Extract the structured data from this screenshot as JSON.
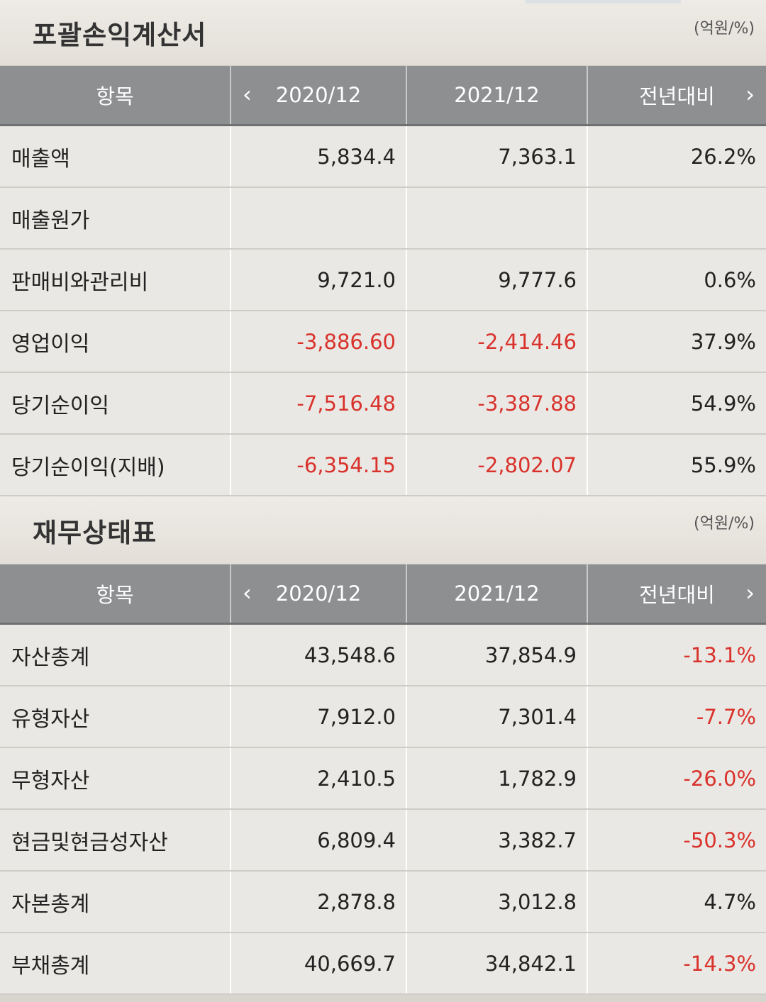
{
  "income": {
    "title": "포괄손익계산서",
    "unit": "(억원/%)",
    "headers": {
      "item": "항목",
      "year1": "2020/12",
      "year2": "2021/12",
      "change": "전년대비"
    },
    "rows": [
      {
        "label": "매출액",
        "y1": "5,834.4",
        "y2": "7,363.1",
        "chg": "26.2%"
      },
      {
        "label": "매출원가",
        "y1": "",
        "y2": "",
        "chg": ""
      },
      {
        "label": "판매비와관리비",
        "y1": "9,721.0",
        "y2": "9,777.6",
        "chg": "0.6%"
      },
      {
        "label": "영업이익",
        "y1": "-3,886.60",
        "y2": "-2,414.46",
        "chg": "37.9%"
      },
      {
        "label": "당기순이익",
        "y1": "-7,516.48",
        "y2": "-3,387.88",
        "chg": "54.9%"
      },
      {
        "label": "당기순이익(지배)",
        "y1": "-6,354.15",
        "y2": "-2,802.07",
        "chg": "55.9%"
      }
    ]
  },
  "balance": {
    "title": "재무상태표",
    "unit": "(억원/%)",
    "headers": {
      "item": "항목",
      "year1": "2020/12",
      "year2": "2021/12",
      "change": "전년대비"
    },
    "rows": [
      {
        "label": "자산총계",
        "y1": "43,548.6",
        "y2": "37,854.9",
        "chg": "-13.1%"
      },
      {
        "label": "유형자산",
        "y1": "7,912.0",
        "y2": "7,301.4",
        "chg": "-7.7%"
      },
      {
        "label": "무형자산",
        "y1": "2,410.5",
        "y2": "1,782.9",
        "chg": "-26.0%"
      },
      {
        "label": "현금및현금성자산",
        "y1": "6,809.4",
        "y2": "3,382.7",
        "chg": "-50.3%"
      },
      {
        "label": "자본총계",
        "y1": "2,878.8",
        "y2": "3,012.8",
        "chg": "4.7%"
      },
      {
        "label": "부채총계",
        "y1": "40,669.7",
        "y2": "34,842.1",
        "chg": "-14.3%"
      }
    ]
  },
  "icons": {
    "prev": "chevron-left-icon",
    "next": "chevron-right-icon"
  },
  "colors": {
    "negative": "#d9322c",
    "header_bg": "#8e8f91",
    "row_bg": "#eae8e4"
  }
}
